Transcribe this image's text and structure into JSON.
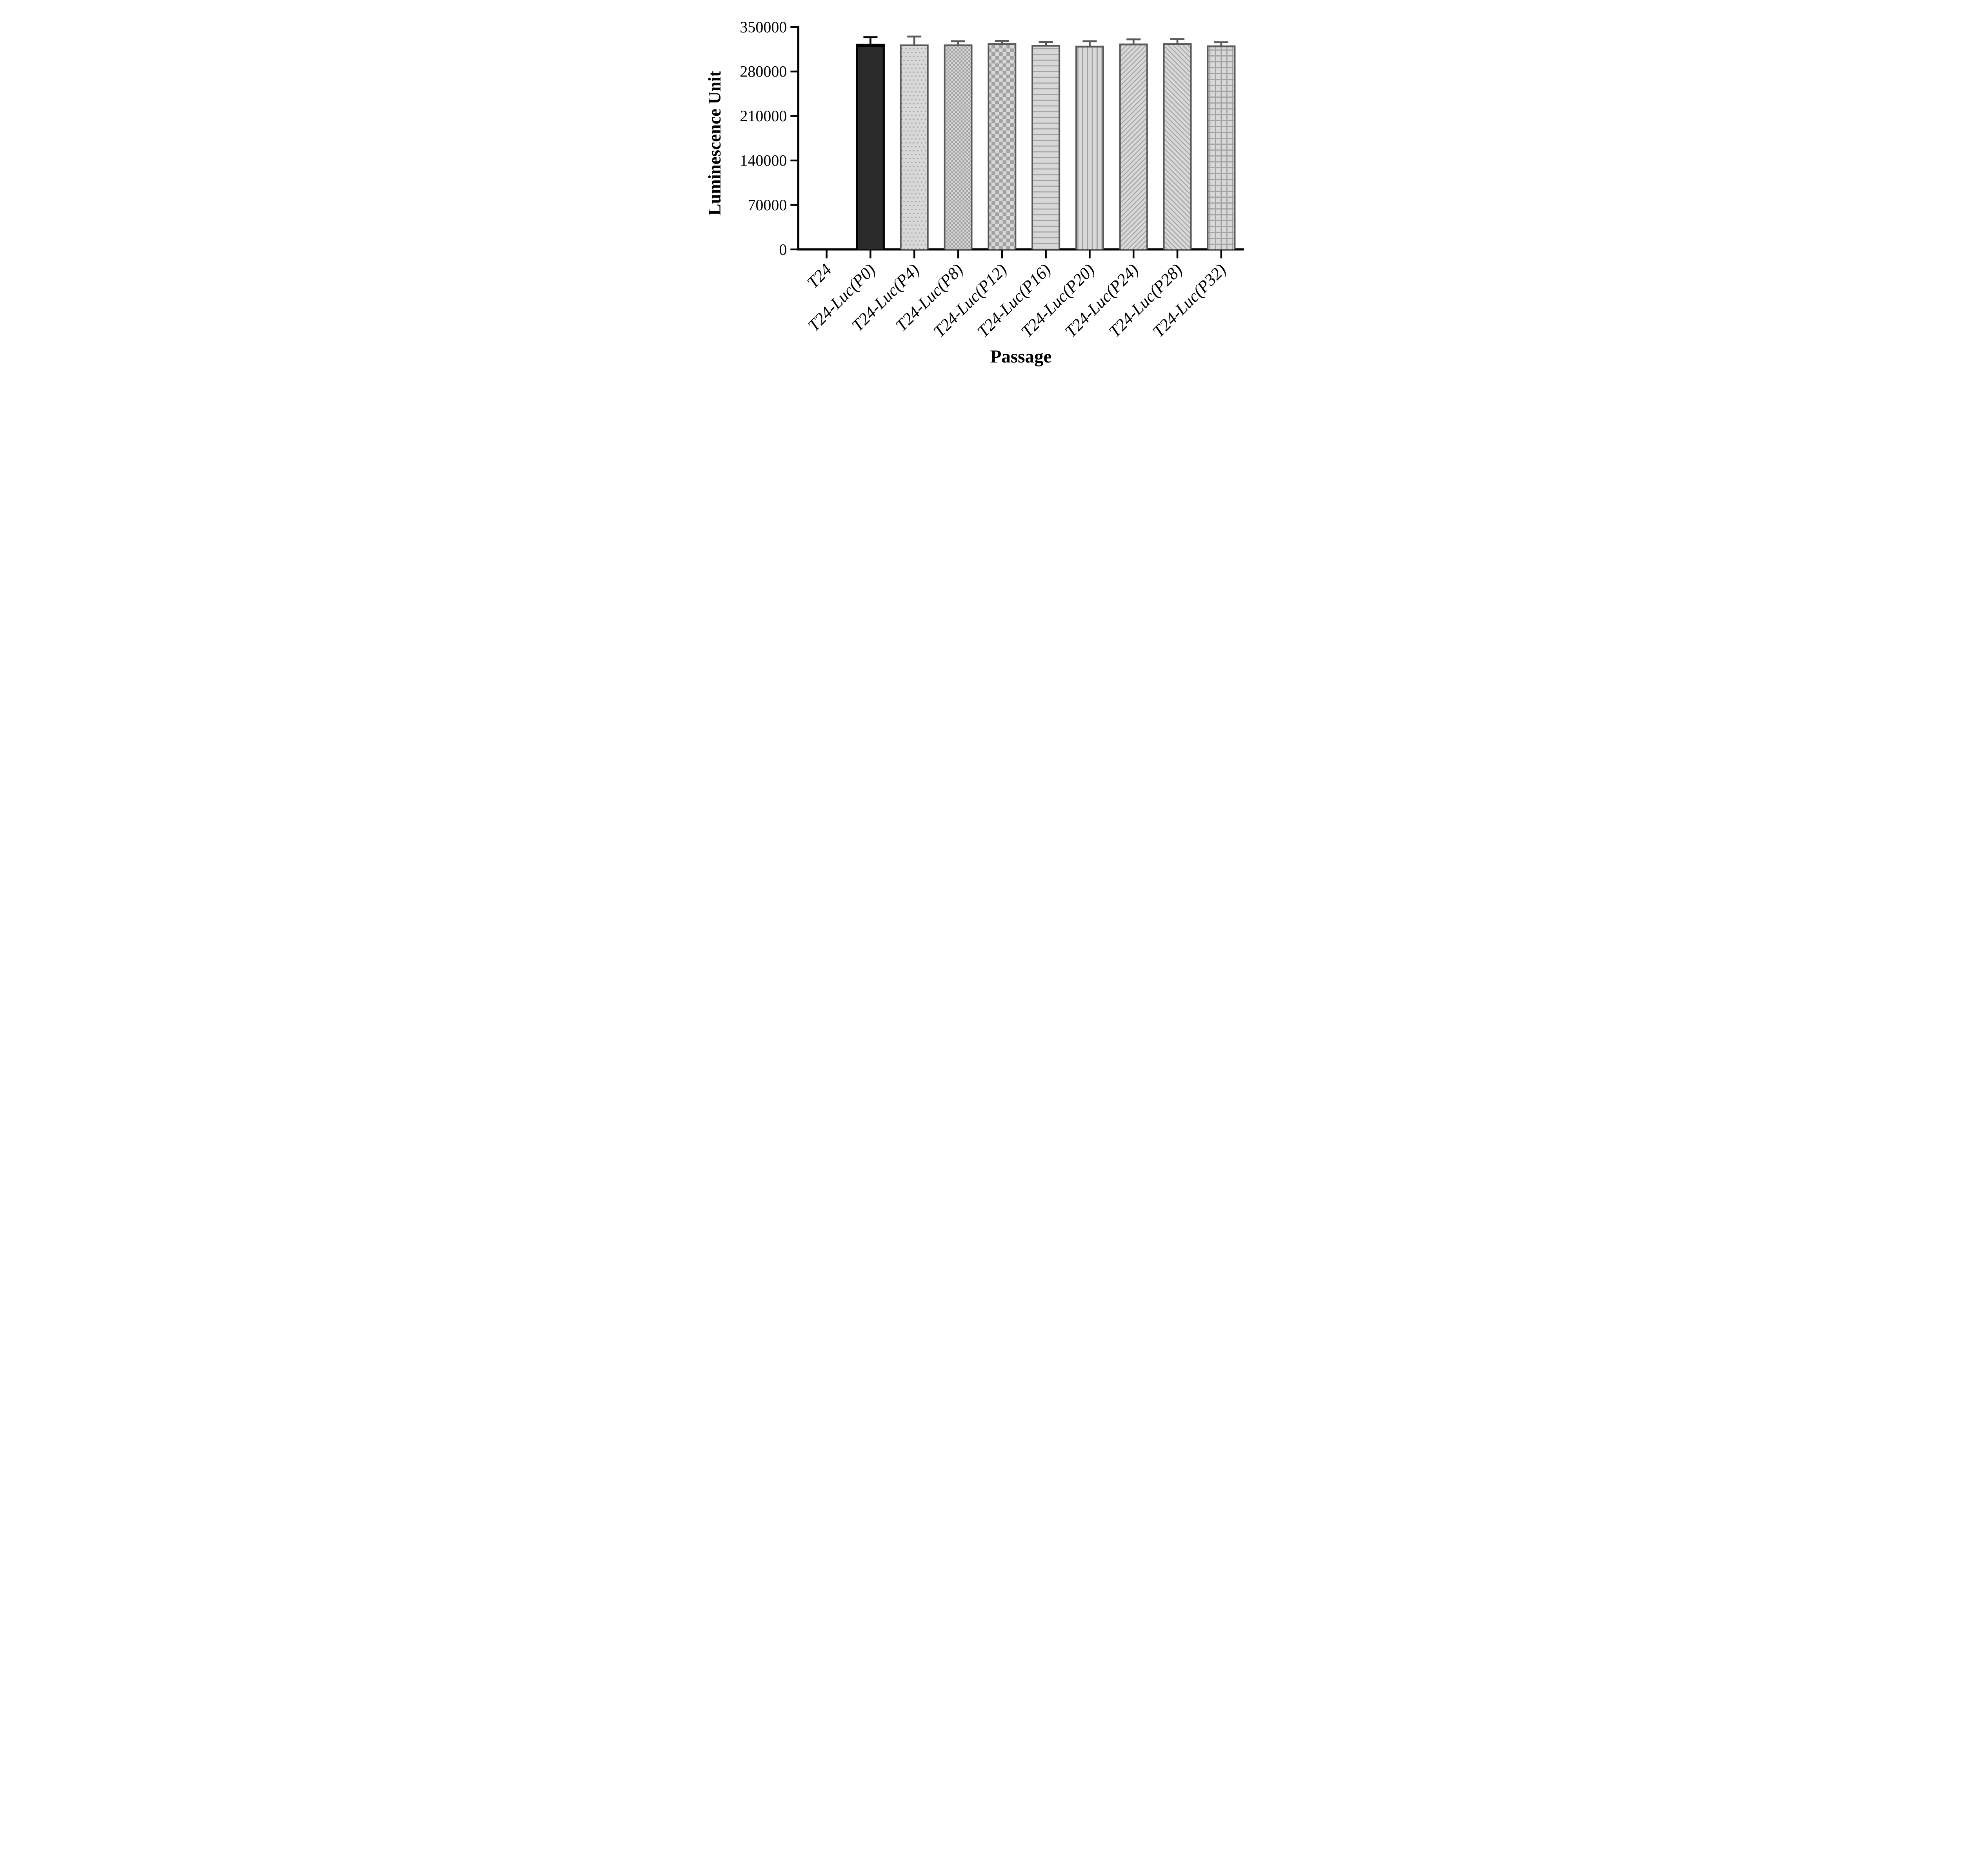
{
  "chart_data": {
    "type": "bar",
    "title": "",
    "xlabel": "Passage",
    "ylabel": "Luminescence Unit",
    "ylim": [
      0,
      350000
    ],
    "yticks": [
      0,
      70000,
      140000,
      210000,
      280000,
      350000
    ],
    "ytick_labels": [
      "0",
      "70000",
      "140000",
      "210000",
      "280000",
      "350000"
    ],
    "categories": [
      "T24",
      "T24-Luc(P0)",
      "T24-Luc(P4)",
      "T24-Luc(P8)",
      "T24-Luc(P12)",
      "T24-Luc(P16)",
      "T24-Luc(P20)",
      "T24-Luc(P24)",
      "T24-Luc(P28)",
      "T24-Luc(P32)"
    ],
    "series": [
      {
        "name": "Luminescence Unit",
        "values": [
          0,
          323500,
          322500,
          322500,
          324500,
          322000,
          320500,
          324000,
          324500,
          321000
        ],
        "errors": [
          0,
          12000,
          14000,
          6500,
          5000,
          6000,
          8500,
          8000,
          8000,
          6500
        ]
      }
    ],
    "bar_patterns": [
      "none",
      "solid-dark",
      "dots",
      "checker-small",
      "checker-large",
      "horizontal-lines",
      "vertical-lines",
      "diagonal-up",
      "diagonal-down",
      "grid"
    ],
    "legend": "none",
    "grid": false,
    "x_tick_label_rotation": -45,
    "colors": {
      "axis": "#000000",
      "text": "#000000",
      "background": "#ffffff",
      "bar_dark_fill": "#2b2b2b",
      "bar_dark_border": "#000000",
      "bar_gray_border": "#595959",
      "fill_light": "#d8d8d8",
      "pattern_ink": "#a2a2a2",
      "error_gray": "#595959",
      "error_black": "#000000"
    }
  }
}
